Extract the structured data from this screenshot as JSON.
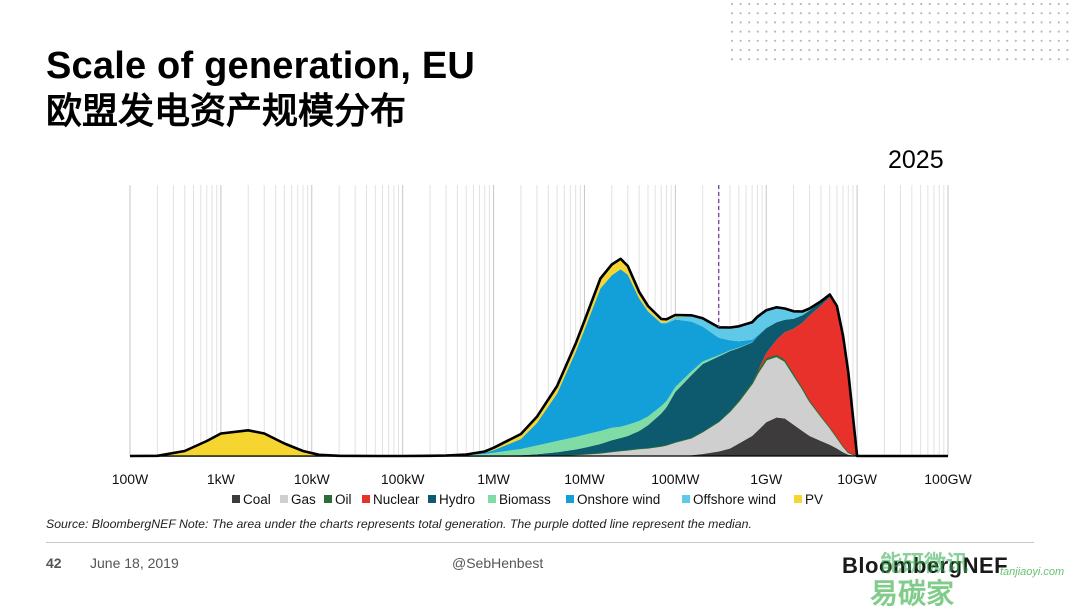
{
  "slide": {
    "title": "Scale of generation, EU",
    "subtitle": "欧盟发电资产规模分布",
    "year": "2025",
    "source": "Source: BloombergNEF  Note: The area under the charts represents total generation. The purple dotted line represent the median.",
    "page_number": "42",
    "date": "June 18, 2019",
    "handle": "@SebHenbest",
    "brand": "BloombergNEF",
    "watermark_text": "能研微讯",
    "watermark_text2": "易碳家",
    "watermark_url": "tanjiaoyi.com"
  },
  "chart_data": {
    "type": "area",
    "stacked": true,
    "x_scale": "log",
    "x_unit": "W",
    "xlim": [
      100,
      100000000000
    ],
    "x_tick_labels": [
      "100W",
      "1kW",
      "10kW",
      "100kW",
      "1MW",
      "10MW",
      "100MW",
      "1GW",
      "10GW",
      "100GW"
    ],
    "x_tick_values": [
      100,
      1000,
      10000,
      100000,
      1000000,
      10000000,
      100000000,
      1000000000,
      10000000000,
      100000000000
    ],
    "grid": "vertical",
    "median_line_x": 300000000,
    "median_line_color": "#7b4fa5",
    "legend_position": "bottom",
    "series": [
      {
        "name": "Coal",
        "color": "#3d3b3c"
      },
      {
        "name": "Gas",
        "color": "#cfcfcf"
      },
      {
        "name": "Oil",
        "color": "#2c6d33"
      },
      {
        "name": "Nuclear",
        "color": "#e8312a"
      },
      {
        "name": "Hydro",
        "color": "#0d5a6e"
      },
      {
        "name": "Biomass",
        "color": "#7fdca4"
      },
      {
        "name": "Onshore wind",
        "color": "#139fd8"
      },
      {
        "name": "Offshore wind",
        "color": "#60c9e8"
      },
      {
        "name": "PV",
        "color": "#f7d531"
      }
    ],
    "x": [
      100,
      200,
      400,
      700,
      1000,
      2000,
      3000,
      5000,
      8000,
      12000,
      20000,
      50000,
      100000,
      200000,
      300000,
      500000,
      800000,
      1000000,
      2000000,
      3000000,
      5000000,
      8000000,
      10000000,
      15000000,
      20000000,
      25000000,
      30000000,
      40000000,
      50000000,
      70000000,
      80000000,
      100000000,
      150000000,
      200000000,
      300000000,
      400000000,
      500000000,
      700000000,
      800000000,
      1000000000,
      1300000000,
      1600000000,
      2000000000,
      2500000000,
      3000000000,
      4000000000,
      5000000000,
      6000000000,
      7000000000,
      8000000000,
      10000000000,
      20000000000,
      50000000000,
      100000000000
    ],
    "values": {
      "Coal": [
        0,
        0,
        0,
        0,
        0,
        0,
        0,
        0,
        0,
        0,
        0,
        0,
        0,
        0,
        0,
        0,
        0,
        0,
        0,
        0,
        0,
        0,
        0,
        0,
        0,
        0,
        0,
        0,
        0,
        0,
        0,
        0.1,
        0.3,
        0.8,
        1.8,
        3,
        5,
        8,
        10,
        13.5,
        15.4,
        15,
        12.5,
        10,
        8,
        6,
        4.5,
        3,
        1.5,
        0.5,
        0,
        0,
        0,
        0
      ],
      "Gas": [
        0,
        0,
        0,
        0,
        0,
        0,
        0,
        0,
        0,
        0,
        0,
        0,
        0,
        0,
        0,
        0,
        0,
        0,
        0,
        0.1,
        0.3,
        0.6,
        0.8,
        1.3,
        1.8,
        2.2,
        2.5,
        3,
        3.3,
        4,
        4.5,
        5.5,
        7,
        9,
        12,
        15,
        17,
        21,
        23,
        25,
        24.5,
        23,
        20,
        17,
        14,
        10,
        7,
        4.5,
        2.5,
        1,
        0,
        0,
        0,
        0
      ],
      "Oil": [
        0,
        0,
        0,
        0,
        0,
        0,
        0,
        0,
        0,
        0,
        0,
        0,
        0,
        0,
        0,
        0,
        0,
        0,
        0,
        0,
        0,
        0,
        0,
        0,
        0,
        0,
        0,
        0,
        0,
        0,
        0,
        0,
        0,
        0,
        0,
        0,
        0.2,
        0.4,
        0.5,
        0.6,
        0.6,
        0.5,
        0.4,
        0.3,
        0.2,
        0.1,
        0,
        0,
        0,
        0,
        0,
        0,
        0,
        0
      ],
      "Nuclear": [
        0,
        0,
        0,
        0,
        0,
        0,
        0,
        0,
        0,
        0,
        0,
        0,
        0,
        0,
        0,
        0,
        0,
        0,
        0,
        0,
        0,
        0,
        0,
        0,
        0,
        0,
        0,
        0,
        0,
        0,
        0,
        0,
        0,
        0,
        0,
        0,
        0,
        0,
        0.2,
        2,
        6,
        11,
        18,
        26,
        34,
        44,
        52,
        52,
        44,
        32,
        0,
        0,
        0,
        0
      ],
      "Hydro": [
        0,
        0,
        0,
        0,
        0,
        0,
        0,
        0,
        0,
        0,
        0,
        0,
        0,
        0,
        0,
        0,
        0,
        0.1,
        0.3,
        0.6,
        1.2,
        2,
        2.5,
        3.5,
        4.5,
        5,
        5.5,
        7,
        9,
        13,
        15,
        20,
        25,
        27,
        26,
        24,
        21,
        16,
        14,
        10,
        7,
        5,
        4,
        3,
        2,
        1.5,
        1,
        0.5,
        0.2,
        0,
        0,
        0,
        0,
        0
      ],
      "Biomass": [
        0,
        0,
        0,
        0,
        0,
        0,
        0,
        0,
        0,
        0,
        0,
        0,
        0,
        0.1,
        0.2,
        0.4,
        0.8,
        1.2,
        2.5,
        3.5,
        4.5,
        5,
        5.2,
        5.2,
        5,
        4.5,
        4.5,
        4,
        3.5,
        3,
        2.5,
        2,
        1.5,
        1,
        0.5,
        0.3,
        0.2,
        0.1,
        0,
        0,
        0,
        0,
        0,
        0,
        0,
        0,
        0,
        0,
        0,
        0,
        0,
        0,
        0,
        0
      ],
      "Onshore wind": [
        0,
        0,
        0,
        0,
        0,
        0,
        0,
        0,
        0,
        0,
        0,
        0,
        0,
        0,
        0,
        0.1,
        0.5,
        1,
        4,
        9,
        19,
        34,
        42,
        57,
        61,
        63,
        60,
        49,
        42,
        33,
        31,
        27,
        20,
        14,
        7,
        4,
        2.5,
        1,
        0.5,
        0.2,
        0,
        0,
        0,
        0,
        0,
        0,
        0,
        0,
        0,
        0,
        0,
        0,
        0,
        0
      ],
      "Offshore wind": [
        0,
        0,
        0,
        0,
        0,
        0,
        0,
        0,
        0,
        0,
        0,
        0,
        0,
        0,
        0,
        0,
        0,
        0,
        0,
        0,
        0,
        0,
        0,
        0,
        0,
        0,
        0,
        0.1,
        0.2,
        0.3,
        0.5,
        1,
        2,
        3,
        4,
        5,
        6,
        7,
        7.5,
        7,
        6,
        4.5,
        3,
        1.5,
        0.8,
        0.3,
        0.1,
        0,
        0,
        0,
        0,
        0,
        0,
        0
      ],
      "PV": [
        0,
        0.1,
        2,
        6,
        9,
        10.3,
        9,
        5,
        2,
        0.5,
        0.1,
        0,
        0,
        0,
        0,
        0.1,
        0.5,
        1,
        2,
        2.5,
        3,
        3.3,
        3.5,
        4,
        4.3,
        4.2,
        3.5,
        2.5,
        2,
        1.5,
        1.2,
        0.8,
        0.5,
        0.3,
        0.2,
        0.1,
        0,
        0,
        0,
        0,
        0,
        0,
        0,
        0,
        0,
        0,
        0,
        0,
        0,
        0,
        0,
        0,
        0,
        0
      ]
    },
    "ylim": [
      0,
      100
    ]
  }
}
